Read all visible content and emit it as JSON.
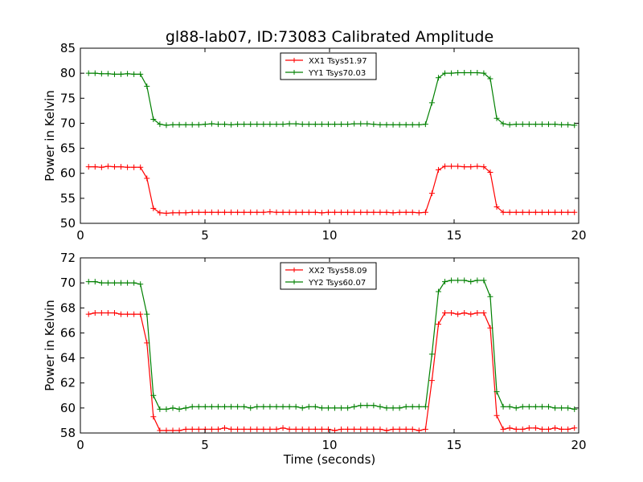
{
  "figure": {
    "title": "gl88-lab07, ID:73083 Calibrated Amplitude"
  },
  "chart_data": [
    {
      "type": "line",
      "title": "gl88-lab07, ID:73083 Calibrated Amplitude",
      "xlabel": "",
      "ylabel": "Power in Kelvin",
      "xlim": [
        0,
        20
      ],
      "ylim": [
        50,
        85
      ],
      "xticks": [
        0,
        5,
        10,
        15,
        20
      ],
      "yticks": [
        50,
        55,
        60,
        65,
        70,
        75,
        80,
        85
      ],
      "grid": false,
      "legend_position": "top-center",
      "x": [
        0.33,
        0.59,
        0.85,
        1.11,
        1.37,
        1.63,
        1.89,
        2.15,
        2.41,
        2.67,
        2.93,
        3.19,
        3.45,
        3.71,
        3.97,
        4.23,
        4.49,
        4.75,
        5.01,
        5.27,
        5.53,
        5.79,
        6.05,
        6.31,
        6.57,
        6.83,
        7.09,
        7.35,
        7.61,
        7.87,
        8.13,
        8.39,
        8.65,
        8.91,
        9.17,
        9.43,
        9.69,
        9.95,
        10.21,
        10.47,
        10.73,
        10.99,
        11.25,
        11.51,
        11.77,
        12.03,
        12.29,
        12.55,
        12.81,
        13.07,
        13.33,
        13.59,
        13.85,
        14.11,
        14.37,
        14.63,
        14.89,
        15.15,
        15.41,
        15.67,
        15.93,
        16.19,
        16.45,
        16.71,
        16.97,
        17.23,
        17.49,
        17.75,
        18.01,
        18.27,
        18.53,
        18.79,
        19.05,
        19.31,
        19.57,
        19.83
      ],
      "series": [
        {
          "name": "XX1 Tsys51.97",
          "color": "#ff0000",
          "values": [
            61.3,
            61.3,
            61.2,
            61.4,
            61.3,
            61.3,
            61.2,
            61.2,
            61.2,
            59.0,
            53.0,
            52.1,
            52.0,
            52.1,
            52.1,
            52.1,
            52.2,
            52.2,
            52.2,
            52.2,
            52.2,
            52.2,
            52.2,
            52.2,
            52.2,
            52.2,
            52.2,
            52.2,
            52.3,
            52.2,
            52.2,
            52.2,
            52.2,
            52.2,
            52.2,
            52.2,
            52.1,
            52.2,
            52.2,
            52.2,
            52.2,
            52.2,
            52.2,
            52.2,
            52.2,
            52.2,
            52.2,
            52.1,
            52.2,
            52.2,
            52.2,
            52.1,
            52.2,
            56.0,
            60.7,
            61.4,
            61.4,
            61.4,
            61.3,
            61.3,
            61.4,
            61.3,
            60.2,
            53.3,
            52.2,
            52.2,
            52.2,
            52.2,
            52.2,
            52.2,
            52.2,
            52.2,
            52.2,
            52.2,
            52.2,
            52.2
          ]
        },
        {
          "name": "YY1 Tsys70.03",
          "color": "#008000",
          "values": [
            80.0,
            80.0,
            79.9,
            79.9,
            79.8,
            79.8,
            79.9,
            79.8,
            79.8,
            77.4,
            70.8,
            69.8,
            69.6,
            69.7,
            69.7,
            69.7,
            69.7,
            69.7,
            69.8,
            69.9,
            69.8,
            69.8,
            69.7,
            69.8,
            69.8,
            69.8,
            69.8,
            69.8,
            69.8,
            69.8,
            69.8,
            69.9,
            69.9,
            69.8,
            69.8,
            69.8,
            69.8,
            69.8,
            69.8,
            69.8,
            69.8,
            69.9,
            69.9,
            69.9,
            69.8,
            69.7,
            69.7,
            69.7,
            69.7,
            69.7,
            69.7,
            69.7,
            69.8,
            74.1,
            79.1,
            80.0,
            80.0,
            80.1,
            80.1,
            80.1,
            80.1,
            80.0,
            78.9,
            71.0,
            69.9,
            69.7,
            69.8,
            69.8,
            69.8,
            69.8,
            69.8,
            69.8,
            69.8,
            69.7,
            69.7,
            69.6
          ]
        }
      ]
    },
    {
      "type": "line",
      "title": "",
      "xlabel": "Time (seconds)",
      "ylabel": "Power in Kelvin",
      "xlim": [
        0,
        20
      ],
      "ylim": [
        58,
        72
      ],
      "xticks": [
        0,
        5,
        10,
        15,
        20
      ],
      "yticks": [
        58,
        60,
        62,
        64,
        66,
        68,
        70,
        72
      ],
      "grid": false,
      "legend_position": "top-center",
      "x": [
        0.33,
        0.59,
        0.85,
        1.11,
        1.37,
        1.63,
        1.89,
        2.15,
        2.41,
        2.67,
        2.93,
        3.19,
        3.45,
        3.71,
        3.97,
        4.23,
        4.49,
        4.75,
        5.01,
        5.27,
        5.53,
        5.79,
        6.05,
        6.31,
        6.57,
        6.83,
        7.09,
        7.35,
        7.61,
        7.87,
        8.13,
        8.39,
        8.65,
        8.91,
        9.17,
        9.43,
        9.69,
        9.95,
        10.21,
        10.47,
        10.73,
        10.99,
        11.25,
        11.51,
        11.77,
        12.03,
        12.29,
        12.55,
        12.81,
        13.07,
        13.33,
        13.59,
        13.85,
        14.11,
        14.37,
        14.63,
        14.89,
        15.15,
        15.41,
        15.67,
        15.93,
        16.19,
        16.45,
        16.71,
        16.97,
        17.23,
        17.49,
        17.75,
        18.01,
        18.27,
        18.53,
        18.79,
        19.05,
        19.31,
        19.57,
        19.83
      ],
      "series": [
        {
          "name": "XX2 Tsys58.09",
          "color": "#ff0000",
          "values": [
            67.5,
            67.6,
            67.6,
            67.6,
            67.6,
            67.5,
            67.5,
            67.5,
            67.5,
            65.2,
            59.3,
            58.2,
            58.2,
            58.2,
            58.2,
            58.3,
            58.3,
            58.3,
            58.3,
            58.3,
            58.3,
            58.4,
            58.3,
            58.3,
            58.3,
            58.3,
            58.3,
            58.3,
            58.3,
            58.3,
            58.4,
            58.3,
            58.3,
            58.3,
            58.3,
            58.3,
            58.3,
            58.3,
            58.2,
            58.3,
            58.3,
            58.3,
            58.3,
            58.3,
            58.3,
            58.3,
            58.2,
            58.3,
            58.3,
            58.3,
            58.3,
            58.2,
            58.3,
            62.2,
            66.7,
            67.6,
            67.6,
            67.5,
            67.6,
            67.5,
            67.6,
            67.6,
            66.4,
            59.4,
            58.3,
            58.4,
            58.3,
            58.3,
            58.4,
            58.4,
            58.3,
            58.3,
            58.4,
            58.3,
            58.3,
            58.4
          ]
        },
        {
          "name": "YY2 Tsys60.07",
          "color": "#008000",
          "values": [
            70.1,
            70.1,
            70.0,
            70.0,
            70.0,
            70.0,
            70.0,
            70.0,
            69.9,
            67.5,
            61.0,
            59.9,
            59.9,
            60.0,
            59.9,
            60.0,
            60.1,
            60.1,
            60.1,
            60.1,
            60.1,
            60.1,
            60.1,
            60.1,
            60.1,
            60.0,
            60.1,
            60.1,
            60.1,
            60.1,
            60.1,
            60.1,
            60.1,
            60.0,
            60.1,
            60.1,
            60.0,
            60.0,
            60.0,
            60.0,
            60.0,
            60.1,
            60.2,
            60.2,
            60.2,
            60.1,
            60.0,
            60.0,
            60.0,
            60.1,
            60.1,
            60.1,
            60.1,
            64.3,
            69.3,
            70.1,
            70.2,
            70.2,
            70.2,
            70.1,
            70.2,
            70.2,
            68.9,
            61.3,
            60.1,
            60.1,
            60.0,
            60.1,
            60.1,
            60.1,
            60.1,
            60.1,
            60.0,
            60.0,
            60.0,
            59.9
          ]
        }
      ]
    }
  ]
}
